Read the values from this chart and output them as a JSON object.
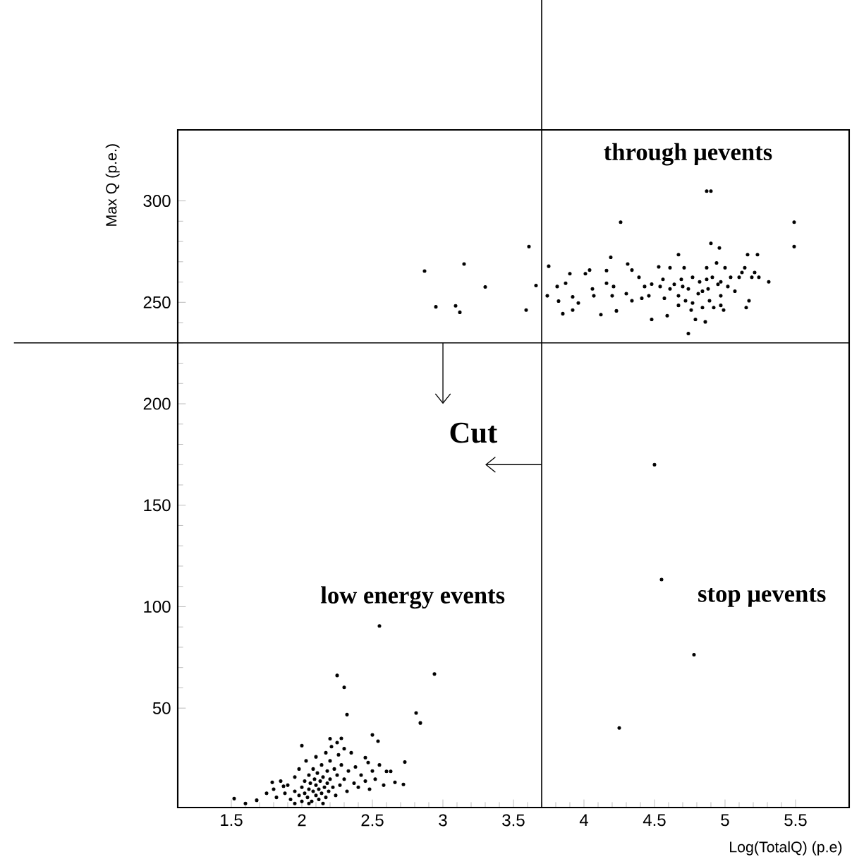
{
  "chart_data": {
    "type": "scatter",
    "xlabel": "Log(TotalQ) (p.e)",
    "ylabel": "Max Q (p.e.)",
    "xlim": [
      1.12,
      5.88
    ],
    "ylim": [
      1,
      335
    ],
    "xticks": [
      1.5,
      2,
      2.5,
      3,
      3.5,
      4,
      4.5,
      5,
      5.5
    ],
    "yticks": [
      50,
      100,
      150,
      200,
      250,
      300
    ],
    "marker": "circle",
    "color": "#000000",
    "x": [
      2.87,
      2.95,
      3.15,
      3.09,
      3.12,
      3.3,
      3.59,
      3.61,
      3.66,
      3.75,
      3.74,
      3.81,
      3.85,
      3.82,
      3.87,
      3.9,
      3.92,
      3.92,
      3.96,
      4.01,
      4.04,
      4.06,
      4.07,
      4.12,
      4.16,
      4.16,
      4.19,
      4.2,
      4.26,
      4.23,
      4.31,
      4.3,
      4.34,
      4.34,
      4.39,
      4.43,
      4.48,
      4.46,
      4.53,
      4.54,
      4.56,
      4.57,
      4.59,
      4.61,
      4.64,
      4.67,
      4.67,
      4.69,
      4.71,
      4.72,
      4.74,
      4.74,
      4.76,
      4.77,
      4.79,
      4.81,
      4.82,
      4.84,
      4.86,
      4.87,
      4.9,
      4.87,
      4.88,
      4.89,
      4.9,
      4.91,
      4.92,
      4.94,
      4.95,
      4.96,
      4.97,
      4.97,
      4.99,
      5.0,
      5.02,
      5.04,
      5.07,
      5.1,
      5.12,
      5.14,
      5.15,
      5.16,
      5.17,
      5.19,
      5.21,
      5.23,
      5.24,
      5.31,
      5.49,
      5.49,
      4.48,
      4.61,
      4.7,
      4.84,
      4.87,
      4.97,
      4.67,
      4.77,
      4.41,
      4.21,
      4.5,
      4.55,
      4.78,
      4.25,
      2.55,
      2.25,
      2.3,
      2.94,
      2.32,
      2.81,
      2.84,
      2.5,
      2.54,
      2.73,
      2.0,
      2.2,
      2.28,
      2.45,
      2.47,
      2.6,
      2.63,
      2.66,
      2.72,
      1.52,
      1.6,
      1.68,
      1.79,
      1.87,
      1.75,
      1.8,
      1.82,
      1.85,
      1.88,
      1.9,
      1.92,
      1.95,
      1.95,
      1.98,
      1.98,
      2.0,
      2.0,
      2.02,
      2.02,
      2.03,
      2.04,
      2.05,
      2.05,
      2.06,
      2.07,
      2.08,
      2.08,
      2.09,
      2.1,
      2.1,
      2.1,
      2.11,
      2.12,
      2.12,
      2.13,
      2.14,
      2.14,
      2.15,
      2.16,
      2.17,
      2.17,
      2.18,
      2.18,
      2.19,
      2.2,
      2.2,
      2.21,
      2.22,
      2.23,
      2.24,
      2.25,
      2.26,
      2.27,
      2.28,
      2.3,
      2.32,
      2.33,
      2.35,
      2.37,
      2.38,
      2.4,
      2.42,
      2.45,
      2.48,
      2.5,
      2.52,
      2.55,
      2.58,
      2.3,
      2.25,
      2.15,
      2.05,
      1.95
    ],
    "values": [
      265.4,
      247.8,
      268.9,
      248.3,
      245.1,
      257.6,
      246.2,
      277.5,
      258.3,
      267.8,
      253.2,
      257.8,
      244.4,
      250.6,
      259.4,
      264.1,
      252.7,
      246.2,
      249.7,
      264.1,
      265.9,
      256.6,
      253.2,
      243.9,
      265.7,
      259.4,
      272.2,
      253.2,
      289.5,
      245.8,
      268.9,
      254.3,
      265.9,
      250.8,
      262.4,
      257.8,
      241.6,
      253.2,
      267.5,
      257.8,
      261.3,
      252.0,
      243.4,
      267.1,
      258.9,
      273.5,
      253.2,
      261.3,
      267.1,
      250.8,
      256.6,
      234.6,
      246.2,
      262.4,
      241.6,
      254.3,
      260.1,
      247.4,
      240.4,
      304.8,
      304.8,
      267.1,
      256.6,
      250.8,
      279.1,
      262.4,
      247.4,
      269.4,
      258.9,
      276.8,
      253.2,
      260.1,
      246.2,
      267.1,
      257.8,
      262.4,
      255.5,
      262.4,
      264.7,
      267.1,
      247.4,
      273.5,
      250.8,
      262.4,
      264.7,
      273.5,
      262.4,
      260.1,
      289.5,
      277.5,
      259,
      256.6,
      257.8,
      255.5,
      261.3,
      248.5,
      248.5,
      249.7,
      252,
      257.8,
      170,
      113.4,
      76.3,
      40.2,
      90.5,
      66.1,
      60.2,
      66.8,
      46.8,
      47.6,
      42.7,
      36.8,
      33.7,
      23.4,
      31.5,
      34.9,
      35.1,
      25.6,
      23.2,
      18.8,
      18.8,
      13.4,
      12.4,
      5.4,
      3.0,
      4.6,
      13.4,
      11.5,
      8,
      10,
      6,
      14,
      8,
      12,
      5,
      16,
      9,
      7,
      20,
      4,
      11,
      14,
      8,
      24,
      6,
      17,
      10,
      13,
      4,
      20,
      9,
      15,
      7,
      12,
      26,
      18,
      5,
      10,
      14,
      22,
      8,
      16,
      11,
      28,
      6,
      19,
      13,
      9,
      24,
      15,
      31,
      11,
      20,
      7,
      17,
      27,
      12,
      22,
      15,
      9,
      19,
      28,
      13,
      21,
      11,
      17,
      14,
      10,
      19,
      15,
      22,
      12,
      30,
      33,
      3,
      3,
      3
    ],
    "ref_lines": [
      {
        "axis": "x",
        "value": 3.7,
        "color": "#000000"
      },
      {
        "axis": "y",
        "value": 230,
        "color": "#000000"
      }
    ],
    "annotations": [
      "through μevents",
      {
        "text": "Cut",
        "x": 3.7,
        "y": 170
      },
      "low energy events",
      "stop μevents"
    ]
  }
}
